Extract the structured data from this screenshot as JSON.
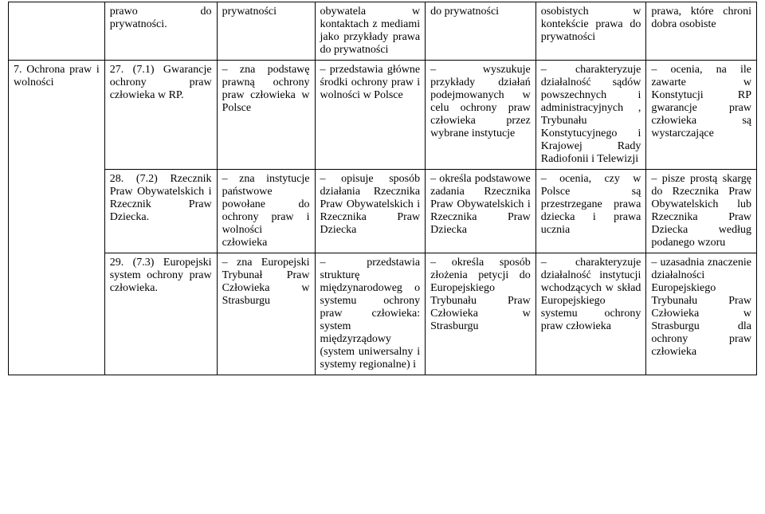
{
  "fonts": {
    "family": "Times New Roman",
    "size_pt": 11
  },
  "colors": {
    "text": "#000000",
    "border": "#000000",
    "background": "#ffffff"
  },
  "rows": [
    {
      "c0": "prawo do prywatności.",
      "c1": "prywatności",
      "c2": "obywatela w kontaktach z mediami jako przykłady prawa do prywatności",
      "c3": "do prywatności",
      "c4": "osobistych w kontekście prawa do prywatności",
      "c5": "prawa, które chroni dobra osobiste",
      "section": ""
    },
    {
      "section": "7. Ochrona praw i wolności",
      "c0": "27. (7.1) Gwarancje ochrony praw człowieka w RP.",
      "c1": "– zna podstawę prawną ochrony praw człowieka w Polsce",
      "c2": "– przedstawia główne środki ochrony praw i wolności w Polsce",
      "c3": "– wyszukuje przykłady działań podejmowanych w celu ochrony praw człowieka przez wybrane instytucje",
      "c4": "– charakteryzuje działalność sądów powszechnych i administracyjnych , Trybunału Konstytucyjnego i Krajowej Rady Radiofonii i Telewizji",
      "c5": "– ocenia, na ile zawarte w Konstytucji RP gwarancje praw człowieka są wystarczające"
    },
    {
      "c0": "28. (7.2) Rzecznik Praw Obywatelskich i Rzecznik Praw Dziecka.",
      "c1": "– zna instytucje państwowe powołane do ochrony praw i wolności człowieka",
      "c2": "– opisuje sposób działania Rzecznika Praw Obywatelskich i Rzecznika Praw Dziecka",
      "c3": "– określa podstawowe zadania Rzecznika Praw Obywatelskich i Rzecznika Praw Dziecka",
      "c4": "– ocenia, czy w Polsce są przestrzegane prawa dziecka i prawa ucznia",
      "c5": "– pisze prostą skargę do Rzecznika Praw Obywatelskich lub Rzecznika Praw Dziecka według podanego wzoru"
    },
    {
      "c0": "29. (7.3) Europejski system ochrony praw człowieka.",
      "c1": "– zna Europejski Trybunał Praw Człowieka w Strasburgu",
      "c2": "– przedstawia strukturę międzynarodoweg o systemu ochrony praw człowieka: system międzyrządowy (system uniwersalny i systemy regionalne) i",
      "c3": "– określa sposób złożenia petycji do Europejskiego Trybunału Praw Człowieka w Strasburgu",
      "c4": "– charakteryzuje działalność instytucji wchodzących w skład Europejskiego systemu ochrony praw człowieka",
      "c5": "– uzasadnia znaczenie działalności Europejskiego Trybunału Praw Człowieka w Strasburgu dla ochrony praw człowieka"
    }
  ]
}
